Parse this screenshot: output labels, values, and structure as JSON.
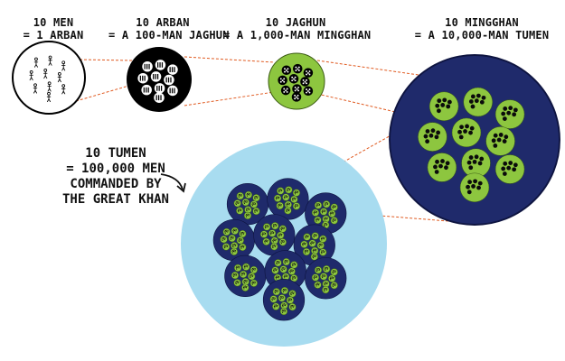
{
  "labels": {
    "men": {
      "line1": "10 MEN",
      "line2": "= 1 ARBAN"
    },
    "arban": {
      "line1": "10 ARBAN",
      "line2": "= A 100-MAN JAGHUN"
    },
    "jaghun": {
      "line1": "10 JAGHUN",
      "line2": "= A 1,000-MAN MINGGHAN"
    },
    "mingghan": {
      "line1": "10 MINGGHAN",
      "line2": "= A 10,000-MAN TUMEN"
    },
    "tumen": {
      "line1": "10 TUMEN",
      "line2": "= 100,000 MEN",
      "line3": "COMMANDED BY",
      "line4": "THE GREAT KHAN"
    }
  },
  "colors": {
    "arban_fill": "#000000",
    "jaghun_fill": "#8dc63f",
    "mingghan_fill": "#1f2a6b",
    "tumen_fill": "#a8dcf0",
    "connector": "#e05a20"
  },
  "icons": {
    "man": "stick-figure-icon",
    "arrow": "curved-arrow-icon"
  }
}
